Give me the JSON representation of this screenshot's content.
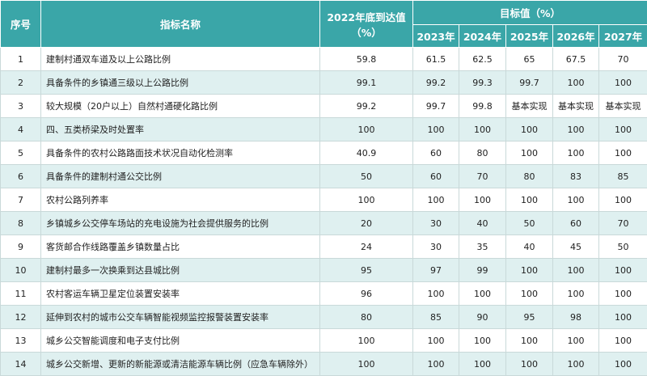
{
  "header": {
    "no": "序号",
    "name": "指标名称",
    "base": [
      "2022年底到达值",
      "（%）"
    ],
    "target": "目标值（%）",
    "years": [
      "2023年",
      "2024年",
      "2025年",
      "2026年",
      "2027年"
    ]
  },
  "table": {
    "rows": [
      [
        "1",
        "建制村通双车道及以上公路比例",
        "59.8",
        "61.5",
        "62.5",
        "65",
        "67.5",
        "70"
      ],
      [
        "2",
        "具备条件的乡镇通三级以上公路比例",
        "99.1",
        "99.2",
        "99.3",
        "99.7",
        "100",
        "100"
      ],
      [
        "3",
        "较大规模（20户以上）自然村通硬化路比例",
        "99.2",
        "99.7",
        "99.8",
        "基本实现",
        "基本实现",
        "基本实现"
      ],
      [
        "4",
        "四、五类桥梁及时处置率",
        "100",
        "100",
        "100",
        "100",
        "100",
        "100"
      ],
      [
        "5",
        "具备条件的农村公路路面技术状况自动化检测率",
        "40.9",
        "60",
        "80",
        "100",
        "100",
        "100"
      ],
      [
        "6",
        "具备条件的建制村通公交比例",
        "50",
        "60",
        "70",
        "80",
        "83",
        "85"
      ],
      [
        "7",
        "农村公路列养率",
        "100",
        "100",
        "100",
        "100",
        "100",
        "100"
      ],
      [
        "8",
        "乡镇城乡公交停车场站的充电设施为社会提供服务的比例",
        "20",
        "30",
        "40",
        "50",
        "60",
        "70"
      ],
      [
        "9",
        "客货邮合作线路覆盖乡镇数量占比",
        "24",
        "30",
        "35",
        "40",
        "45",
        "50"
      ],
      [
        "10",
        "建制村最多一次换乘到达县城比例",
        "95",
        "97",
        "99",
        "100",
        "100",
        "100"
      ],
      [
        "11",
        "农村客运车辆卫星定位装置安装率",
        "96",
        "100",
        "100",
        "100",
        "100",
        "100"
      ],
      [
        "12",
        "延伸到农村的城市公交车辆智能视频监控报警装置安装率",
        "80",
        "85",
        "90",
        "95",
        "98",
        "100"
      ],
      [
        "13",
        "城乡公交智能调度和电子支付比例",
        "100",
        "100",
        "100",
        "100",
        "100",
        "100"
      ],
      [
        "14",
        "城乡公交新增、更新的新能源或清洁能源车辆比例（应急车辆除外）",
        "100",
        "100",
        "100",
        "100",
        "100",
        "100"
      ]
    ]
  }
}
